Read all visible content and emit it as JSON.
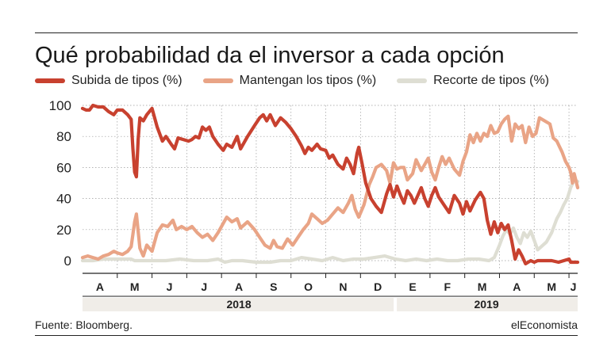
{
  "title": "Qué probabilidad da el inversor a cada opción",
  "source": "Fuente: Bloomberg.",
  "brand": "elEconomista",
  "colors": {
    "subida": "#c8412f",
    "mantengan": "#e9a486",
    "recorte": "#deded3",
    "axis": "#222222",
    "grid": "#9a9a9a",
    "yearBand": "#f0ede8"
  },
  "chart_data": {
    "type": "line",
    "yticks": [
      0,
      20,
      40,
      60,
      80,
      100
    ],
    "ylim": [
      -3,
      100
    ],
    "xlim": [
      0,
      14.25
    ],
    "months": [
      "A",
      "M",
      "J",
      "J",
      "A",
      "S",
      "O",
      "N",
      "D",
      "E",
      "F",
      "M",
      "A",
      "M",
      "J"
    ],
    "years": [
      {
        "label": "2018",
        "start": 0,
        "end": 9
      },
      {
        "label": "2019",
        "start": 9,
        "end": 14.25
      }
    ],
    "series": [
      {
        "name": "Subida de tipos (%)",
        "color": "#c8412f",
        "points": [
          [
            0.0,
            98
          ],
          [
            0.1,
            97
          ],
          [
            0.2,
            97
          ],
          [
            0.3,
            100
          ],
          [
            0.45,
            99
          ],
          [
            0.6,
            99
          ],
          [
            0.75,
            96
          ],
          [
            0.9,
            94
          ],
          [
            1.0,
            97
          ],
          [
            1.15,
            97
          ],
          [
            1.3,
            94
          ],
          [
            1.4,
            91
          ],
          [
            1.45,
            72
          ],
          [
            1.5,
            57
          ],
          [
            1.55,
            54
          ],
          [
            1.6,
            78
          ],
          [
            1.65,
            92
          ],
          [
            1.75,
            90
          ],
          [
            1.85,
            94
          ],
          [
            2.0,
            98
          ],
          [
            2.15,
            86
          ],
          [
            2.3,
            77
          ],
          [
            2.4,
            80
          ],
          [
            2.55,
            75
          ],
          [
            2.65,
            72
          ],
          [
            2.75,
            79
          ],
          [
            2.9,
            78
          ],
          [
            3.05,
            77
          ],
          [
            3.15,
            78
          ],
          [
            3.25,
            80
          ],
          [
            3.35,
            79
          ],
          [
            3.45,
            86
          ],
          [
            3.55,
            84
          ],
          [
            3.65,
            86
          ],
          [
            3.75,
            80
          ],
          [
            3.9,
            75
          ],
          [
            4.05,
            71
          ],
          [
            4.15,
            75
          ],
          [
            4.3,
            73
          ],
          [
            4.45,
            80
          ],
          [
            4.55,
            72
          ],
          [
            4.75,
            80
          ],
          [
            4.95,
            87
          ],
          [
            5.1,
            92
          ],
          [
            5.2,
            94
          ],
          [
            5.3,
            90
          ],
          [
            5.4,
            94
          ],
          [
            5.55,
            87
          ],
          [
            5.7,
            92
          ],
          [
            5.85,
            89
          ],
          [
            6.0,
            85
          ],
          [
            6.15,
            80
          ],
          [
            6.3,
            74
          ],
          [
            6.4,
            69
          ],
          [
            6.5,
            73
          ],
          [
            6.6,
            71
          ],
          [
            6.75,
            75
          ],
          [
            6.85,
            72
          ],
          [
            7.0,
            71
          ],
          [
            7.1,
            66
          ],
          [
            7.2,
            68
          ],
          [
            7.35,
            62
          ],
          [
            7.5,
            59
          ],
          [
            7.6,
            66
          ],
          [
            7.7,
            62
          ],
          [
            7.8,
            56
          ],
          [
            7.9,
            69
          ],
          [
            7.95,
            73
          ],
          [
            8.05,
            62
          ],
          [
            8.15,
            50
          ],
          [
            8.3,
            40
          ],
          [
            8.45,
            35
          ],
          [
            8.6,
            31
          ],
          [
            8.75,
            43
          ],
          [
            8.85,
            49
          ],
          [
            8.95,
            41
          ],
          [
            9.05,
            48
          ],
          [
            9.15,
            42
          ],
          [
            9.25,
            37
          ],
          [
            9.35,
            45
          ],
          [
            9.45,
            42
          ],
          [
            9.55,
            37
          ],
          [
            9.65,
            42
          ],
          [
            9.75,
            47
          ],
          [
            9.85,
            40
          ],
          [
            9.95,
            35
          ],
          [
            10.05,
            42
          ],
          [
            10.15,
            47
          ],
          [
            10.25,
            41
          ],
          [
            10.4,
            36
          ],
          [
            10.55,
            31
          ],
          [
            10.7,
            42
          ],
          [
            10.85,
            37
          ],
          [
            10.95,
            30
          ],
          [
            11.05,
            38
          ],
          [
            11.15,
            32
          ],
          [
            11.3,
            39
          ],
          [
            11.45,
            44
          ],
          [
            11.55,
            40
          ],
          [
            11.65,
            26
          ],
          [
            11.75,
            17
          ],
          [
            11.85,
            25
          ],
          [
            11.95,
            18
          ],
          [
            12.05,
            24
          ],
          [
            12.15,
            20
          ],
          [
            12.25,
            23
          ],
          [
            12.35,
            13
          ],
          [
            12.45,
            1
          ],
          [
            12.55,
            7
          ],
          [
            12.65,
            3
          ],
          [
            12.75,
            -2
          ],
          [
            12.9,
            0
          ],
          [
            13.0,
            -1
          ],
          [
            13.1,
            0
          ],
          [
            13.25,
            0
          ],
          [
            13.5,
            0
          ],
          [
            13.7,
            -1
          ],
          [
            13.85,
            0
          ],
          [
            14.0,
            1
          ],
          [
            14.05,
            -1
          ],
          [
            14.25,
            -1
          ]
        ]
      },
      {
        "name": "Mantengan los tipos (%)",
        "color": "#e9a486",
        "points": [
          [
            0.0,
            2
          ],
          [
            0.15,
            3
          ],
          [
            0.3,
            2
          ],
          [
            0.45,
            1
          ],
          [
            0.6,
            3
          ],
          [
            0.75,
            4
          ],
          [
            0.9,
            6
          ],
          [
            1.0,
            5
          ],
          [
            1.15,
            4
          ],
          [
            1.3,
            6
          ],
          [
            1.4,
            9
          ],
          [
            1.5,
            25
          ],
          [
            1.55,
            30
          ],
          [
            1.65,
            8
          ],
          [
            1.75,
            3
          ],
          [
            1.85,
            10
          ],
          [
            2.0,
            6
          ],
          [
            2.15,
            18
          ],
          [
            2.3,
            23
          ],
          [
            2.45,
            22
          ],
          [
            2.6,
            26
          ],
          [
            2.7,
            20
          ],
          [
            2.85,
            22
          ],
          [
            3.0,
            20
          ],
          [
            3.15,
            22
          ],
          [
            3.3,
            18
          ],
          [
            3.45,
            15
          ],
          [
            3.6,
            17
          ],
          [
            3.75,
            13
          ],
          [
            3.9,
            18
          ],
          [
            4.05,
            24
          ],
          [
            4.15,
            28
          ],
          [
            4.3,
            25
          ],
          [
            4.45,
            27
          ],
          [
            4.55,
            21
          ],
          [
            4.75,
            25
          ],
          [
            4.95,
            20
          ],
          [
            5.1,
            15
          ],
          [
            5.25,
            10
          ],
          [
            5.4,
            8
          ],
          [
            5.5,
            13
          ],
          [
            5.6,
            9
          ],
          [
            5.75,
            8
          ],
          [
            5.9,
            14
          ],
          [
            6.05,
            10
          ],
          [
            6.2,
            15
          ],
          [
            6.35,
            20
          ],
          [
            6.5,
            24
          ],
          [
            6.6,
            30
          ],
          [
            6.75,
            27
          ],
          [
            6.9,
            24
          ],
          [
            7.05,
            26
          ],
          [
            7.2,
            30
          ],
          [
            7.35,
            34
          ],
          [
            7.5,
            31
          ],
          [
            7.65,
            37
          ],
          [
            7.75,
            42
          ],
          [
            7.85,
            33
          ],
          [
            7.95,
            28
          ],
          [
            8.1,
            36
          ],
          [
            8.25,
            49
          ],
          [
            8.35,
            54
          ],
          [
            8.45,
            60
          ],
          [
            8.6,
            62
          ],
          [
            8.75,
            58
          ],
          [
            8.85,
            50
          ],
          [
            8.95,
            63
          ],
          [
            9.05,
            59
          ],
          [
            9.15,
            60
          ],
          [
            9.25,
            60
          ],
          [
            9.35,
            52
          ],
          [
            9.5,
            56
          ],
          [
            9.6,
            65
          ],
          [
            9.75,
            58
          ],
          [
            9.85,
            62
          ],
          [
            9.95,
            66
          ],
          [
            10.05,
            57
          ],
          [
            10.15,
            52
          ],
          [
            10.25,
            60
          ],
          [
            10.35,
            67
          ],
          [
            10.45,
            62
          ],
          [
            10.55,
            66
          ],
          [
            10.7,
            59
          ],
          [
            10.85,
            55
          ],
          [
            10.95,
            64
          ],
          [
            11.05,
            70
          ],
          [
            11.15,
            81
          ],
          [
            11.25,
            76
          ],
          [
            11.35,
            82
          ],
          [
            11.45,
            77
          ],
          [
            11.55,
            82
          ],
          [
            11.65,
            80
          ],
          [
            11.75,
            87
          ],
          [
            11.85,
            82
          ],
          [
            11.95,
            83
          ],
          [
            12.05,
            88
          ],
          [
            12.15,
            91
          ],
          [
            12.25,
            93
          ],
          [
            12.35,
            77
          ],
          [
            12.45,
            88
          ],
          [
            12.55,
            85
          ],
          [
            12.65,
            87
          ],
          [
            12.75,
            76
          ],
          [
            12.85,
            86
          ],
          [
            12.95,
            80
          ],
          [
            13.05,
            82
          ],
          [
            13.15,
            92
          ],
          [
            13.3,
            90
          ],
          [
            13.45,
            88
          ],
          [
            13.55,
            79
          ],
          [
            13.65,
            77
          ],
          [
            13.8,
            70
          ],
          [
            13.9,
            64
          ],
          [
            14.0,
            60
          ],
          [
            14.05,
            57
          ],
          [
            14.1,
            50
          ],
          [
            14.15,
            56
          ],
          [
            14.25,
            47
          ]
        ]
      },
      {
        "name": "Recorte de tipos (%)",
        "color": "#deded3",
        "points": [
          [
            0.0,
            0
          ],
          [
            0.3,
            0
          ],
          [
            0.6,
            1
          ],
          [
            1.0,
            1
          ],
          [
            1.4,
            1
          ],
          [
            1.5,
            0
          ],
          [
            2.0,
            0
          ],
          [
            2.4,
            0
          ],
          [
            2.8,
            1
          ],
          [
            3.2,
            0
          ],
          [
            3.6,
            0
          ],
          [
            3.9,
            1
          ],
          [
            4.1,
            -1
          ],
          [
            4.3,
            0
          ],
          [
            4.6,
            0
          ],
          [
            5.0,
            -1
          ],
          [
            5.4,
            -1
          ],
          [
            5.7,
            0
          ],
          [
            6.0,
            0
          ],
          [
            6.3,
            2
          ],
          [
            6.6,
            1
          ],
          [
            6.9,
            0
          ],
          [
            7.2,
            2
          ],
          [
            7.5,
            0
          ],
          [
            7.8,
            1
          ],
          [
            8.1,
            1
          ],
          [
            8.4,
            2
          ],
          [
            8.7,
            3
          ],
          [
            9.0,
            1
          ],
          [
            9.3,
            0
          ],
          [
            9.6,
            1
          ],
          [
            9.9,
            0
          ],
          [
            10.2,
            1
          ],
          [
            10.5,
            0
          ],
          [
            10.8,
            0
          ],
          [
            11.1,
            1
          ],
          [
            11.4,
            1
          ],
          [
            11.7,
            0
          ],
          [
            11.85,
            2
          ],
          [
            12.0,
            10
          ],
          [
            12.1,
            16
          ],
          [
            12.2,
            20
          ],
          [
            12.3,
            17
          ],
          [
            12.4,
            21
          ],
          [
            12.5,
            15
          ],
          [
            12.6,
            11
          ],
          [
            12.7,
            18
          ],
          [
            12.8,
            15
          ],
          [
            12.9,
            19
          ],
          [
            13.0,
            13
          ],
          [
            13.1,
            7
          ],
          [
            13.2,
            9
          ],
          [
            13.35,
            12
          ],
          [
            13.5,
            18
          ],
          [
            13.65,
            27
          ],
          [
            13.75,
            31
          ],
          [
            13.85,
            36
          ],
          [
            13.95,
            40
          ],
          [
            14.05,
            47
          ],
          [
            14.15,
            52
          ],
          [
            14.25,
            51
          ]
        ]
      }
    ]
  }
}
